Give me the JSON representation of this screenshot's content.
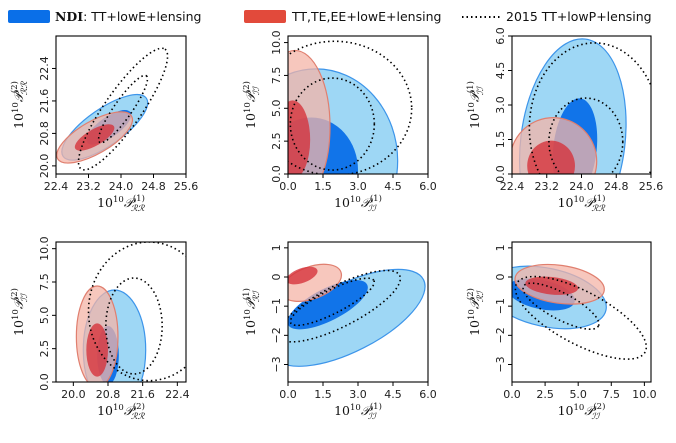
{
  "legend": [
    {
      "bold": "NDI",
      "label": ": TT+lowE+lensing",
      "color": "#0a6fe8",
      "style": "filled"
    },
    {
      "bold": "",
      "label": "TT,TE,EE+lowE+lensing",
      "color": "#e24a3b",
      "style": "filled"
    },
    {
      "bold": "",
      "label": "2015 TT+lowP+lensing",
      "color": "#000000",
      "style": "dotted"
    }
  ],
  "colors": {
    "blue_inner": "#0a6fe8",
    "blue_outer": "#8dd0f3",
    "blue_edge": "#3d95ea",
    "red_inner": "#d6333c",
    "red_outer": "#f4b4a7",
    "red_edge": "#e07f6f",
    "dotted": "#000000"
  },
  "chart_data": [
    {
      "type": "contour",
      "id": "p1",
      "xlabel_base": "10",
      "xlabel_exp": "10",
      "xlabel_sym": "𝒫",
      "xlabel_sup": "(1)",
      "xlabel_sub": "ℛℛ",
      "ylabel_base": "10",
      "ylabel_exp": "10",
      "ylabel_sym": "𝒫",
      "ylabel_sup": "(2)",
      "ylabel_sub": "ℛℛ",
      "xlim": [
        22.4,
        25.6
      ],
      "ylim": [
        19.8,
        23.2
      ],
      "xticks": [
        22.4,
        23.2,
        24.0,
        24.8,
        25.6
      ],
      "xtick_labels": [
        "22.4",
        "23.2",
        "24.0",
        "24.8",
        "25.6"
      ],
      "yticks": [
        20.0,
        20.8,
        21.6,
        22.4
      ],
      "ytick_labels": [
        "20.0",
        "20.8",
        "21.6",
        "22.4"
      ],
      "contours": [
        {
          "set": "blue",
          "level": "95",
          "cx": 23.6,
          "cy": 20.95,
          "rx": 1.25,
          "ry": 0.45,
          "angle": 35
        },
        {
          "set": "blue",
          "level": "68",
          "cx": 23.7,
          "cy": 20.95,
          "rx": 0.65,
          "ry": 0.25,
          "angle": 35
        },
        {
          "set": "red",
          "level": "95",
          "cx": 23.35,
          "cy": 20.7,
          "rx": 1.05,
          "ry": 0.4,
          "angle": 30
        },
        {
          "set": "red",
          "level": "68",
          "cx": 23.35,
          "cy": 20.7,
          "rx": 0.55,
          "ry": 0.2,
          "angle": 30
        },
        {
          "set": "dotted",
          "level": "95",
          "cx": 24.05,
          "cy": 21.4,
          "rx": 1.8,
          "ry": 0.45,
          "angle": 55
        },
        {
          "set": "dotted",
          "level": "68",
          "cx": 24.05,
          "cy": 21.4,
          "rx": 1.0,
          "ry": 0.22,
          "angle": 55
        }
      ]
    },
    {
      "type": "contour",
      "id": "p2",
      "xlabel_base": "10",
      "xlabel_exp": "10",
      "xlabel_sym": "𝒫",
      "xlabel_sup": "(1)",
      "xlabel_sub": "ℐℐ",
      "ylabel_base": "10",
      "ylabel_exp": "10",
      "ylabel_sym": "𝒫",
      "ylabel_sup": "(2)",
      "ylabel_sub": "ℐℐ",
      "xlim": [
        0,
        6.0
      ],
      "ylim": [
        0,
        10.5
      ],
      "xticks": [
        0,
        1.5,
        3.0,
        4.5,
        6.0
      ],
      "xtick_labels": [
        "0.0",
        "1.5",
        "3.0",
        "4.5",
        "6.0"
      ],
      "yticks": [
        0,
        2.5,
        5.0,
        7.5,
        10.0
      ],
      "ytick_labels": [
        "0.0",
        "2.5",
        "5.0",
        "7.5",
        "10.0"
      ],
      "contours": [
        {
          "set": "blue",
          "level": "95",
          "cx": 1.2,
          "cy": 1.0,
          "rx": 3.5,
          "ry": 7.0,
          "angle": 0
        },
        {
          "set": "blue",
          "level": "68",
          "cx": 1.0,
          "cy": 0.3,
          "rx": 2.0,
          "ry": 4.0,
          "angle": 0
        },
        {
          "set": "red",
          "level": "95",
          "cx": 0.3,
          "cy": 3.6,
          "rx": 1.5,
          "ry": 5.8,
          "angle": 0
        },
        {
          "set": "red",
          "level": "68",
          "cx": 0.2,
          "cy": 2.6,
          "rx": 0.75,
          "ry": 3.0,
          "angle": 0
        },
        {
          "set": "dotted",
          "level": "95",
          "cx": 2.0,
          "cy": 5.0,
          "rx": 3.3,
          "ry": 5.1,
          "angle": 0
        },
        {
          "set": "dotted",
          "level": "68",
          "cx": 1.9,
          "cy": 3.8,
          "rx": 1.8,
          "ry": 3.5,
          "angle": 0
        }
      ]
    },
    {
      "type": "contour",
      "id": "p3",
      "xlabel_base": "10",
      "xlabel_exp": "10",
      "xlabel_sym": "𝒫",
      "xlabel_sup": "(1)",
      "xlabel_sub": "ℛℛ",
      "ylabel_base": "10",
      "ylabel_exp": "10",
      "ylabel_sym": "𝒫",
      "ylabel_sup": "(1)",
      "ylabel_sub": "ℐℐ",
      "xlim": [
        22.4,
        25.6
      ],
      "ylim": [
        0,
        6.0
      ],
      "xticks": [
        22.4,
        23.2,
        24.0,
        24.8,
        25.6
      ],
      "xtick_labels": [
        "22.4",
        "23.2",
        "24.0",
        "24.8",
        "25.6"
      ],
      "yticks": [
        0,
        1.5,
        3.0,
        4.5,
        6.0
      ],
      "ytick_labels": [
        "0.0",
        "1.5",
        "3.0",
        "4.5",
        "6.0"
      ],
      "contours": [
        {
          "set": "blue",
          "level": "95",
          "cx": 23.8,
          "cy": 1.4,
          "rx": 1.2,
          "ry": 4.5,
          "angle": -7
        },
        {
          "set": "blue",
          "level": "68",
          "cx": 23.85,
          "cy": 1.1,
          "rx": 0.5,
          "ry": 2.2,
          "angle": -6
        },
        {
          "set": "red",
          "level": "95",
          "cx": 23.35,
          "cy": 0.55,
          "rx": 1.0,
          "ry": 1.9,
          "angle": 0
        },
        {
          "set": "red",
          "level": "68",
          "cx": 23.3,
          "cy": 0.35,
          "rx": 0.55,
          "ry": 1.1,
          "angle": 0
        },
        {
          "set": "dotted",
          "level": "95",
          "cx": 24.3,
          "cy": 2.0,
          "rx": 1.5,
          "ry": 3.7,
          "angle": 0
        },
        {
          "set": "dotted",
          "level": "68",
          "cx": 24.1,
          "cy": 1.4,
          "rx": 0.85,
          "ry": 1.9,
          "angle": 0
        }
      ]
    },
    {
      "type": "contour",
      "id": "p4",
      "xlabel_base": "10",
      "xlabel_exp": "10",
      "xlabel_sym": "𝒫",
      "xlabel_sup": "(2)",
      "xlabel_sub": "ℛℛ",
      "ylabel_base": "10",
      "ylabel_exp": "10",
      "ylabel_sym": "𝒫",
      "ylabel_sup": "(2)",
      "ylabel_sub": "ℐℐ",
      "xlim": [
        19.6,
        22.6
      ],
      "ylim": [
        0,
        10.5
      ],
      "xticks": [
        20.0,
        20.8,
        21.6,
        22.4
      ],
      "xtick_labels": [
        "20.0",
        "20.8",
        "21.6",
        "22.4"
      ],
      "yticks": [
        0,
        2.5,
        5.0,
        7.5,
        10.0
      ],
      "ytick_labels": [
        "0.0",
        "2.5",
        "5.0",
        "7.5",
        "10.0"
      ],
      "contours": [
        {
          "set": "blue",
          "level": "95",
          "cx": 20.95,
          "cy": 2.4,
          "rx": 0.72,
          "ry": 4.5,
          "angle": 0
        },
        {
          "set": "blue",
          "level": "68",
          "cx": 20.8,
          "cy": 2.0,
          "rx": 0.25,
          "ry": 2.2,
          "angle": 0
        },
        {
          "set": "red",
          "level": "95",
          "cx": 20.55,
          "cy": 3.4,
          "rx": 0.48,
          "ry": 3.8,
          "angle": 0
        },
        {
          "set": "red",
          "level": "68",
          "cx": 20.55,
          "cy": 2.4,
          "rx": 0.25,
          "ry": 2.0,
          "angle": 0
        },
        {
          "set": "dotted",
          "level": "95",
          "cx": 21.75,
          "cy": 5.3,
          "rx": 1.4,
          "ry": 5.2,
          "angle": 0
        },
        {
          "set": "dotted",
          "level": "68",
          "cx": 21.4,
          "cy": 4.2,
          "rx": 0.65,
          "ry": 3.6,
          "angle": 0
        }
      ]
    },
    {
      "type": "contour",
      "id": "p5",
      "xlabel_base": "10",
      "xlabel_exp": "10",
      "xlabel_sym": "𝒫",
      "xlabel_sup": "(1)",
      "xlabel_sub": "ℐℐ",
      "ylabel_base": "10",
      "ylabel_exp": "10",
      "ylabel_sym": "𝒫",
      "ylabel_sup": "(1)",
      "ylabel_sub": "ℛℐ",
      "xlim": [
        0,
        6.0
      ],
      "ylim": [
        -3.6,
        1.2
      ],
      "xticks": [
        0,
        1.5,
        3.0,
        4.5,
        6.0
      ],
      "xtick_labels": [
        "0.0",
        "1.5",
        "3.0",
        "4.5",
        "6.0"
      ],
      "yticks": [
        -3,
        -2,
        -1,
        0,
        1
      ],
      "ytick_labels": [
        "−3",
        "−2",
        "−1",
        "0",
        "1"
      ],
      "contours": [
        {
          "set": "blue",
          "level": "95",
          "cx": 2.6,
          "cy": -1.4,
          "rx": 3.6,
          "ry": 1.15,
          "angle": 27
        },
        {
          "set": "blue",
          "level": "68",
          "cx": 1.7,
          "cy": -0.95,
          "rx": 1.9,
          "ry": 0.55,
          "angle": 27
        },
        {
          "set": "red",
          "level": "95",
          "cx": 1.0,
          "cy": -0.2,
          "rx": 1.35,
          "ry": 0.55,
          "angle": 20
        },
        {
          "set": "red",
          "level": "68",
          "cx": 0.6,
          "cy": 0.05,
          "rx": 0.7,
          "ry": 0.25,
          "angle": 20
        },
        {
          "set": "dotted",
          "level": "95",
          "cx": 2.2,
          "cy": -1.0,
          "rx": 2.9,
          "ry": 0.7,
          "angle": 27
        },
        {
          "set": "dotted",
          "level": "68",
          "cx": 1.9,
          "cy": -0.85,
          "rx": 2.0,
          "ry": 0.4,
          "angle": 27
        }
      ]
    },
    {
      "type": "contour",
      "id": "p6",
      "xlabel_base": "10",
      "xlabel_exp": "10",
      "xlabel_sym": "𝒫",
      "xlabel_sup": "(2)",
      "xlabel_sub": "ℐℐ",
      "ylabel_base": "10",
      "ylabel_exp": "10",
      "ylabel_sym": "𝒫",
      "ylabel_sup": "(2)",
      "ylabel_sub": "ℛℐ",
      "xlim": [
        0,
        10.5
      ],
      "ylim": [
        -3.6,
        1.2
      ],
      "xticks": [
        0,
        2.5,
        5.0,
        7.5,
        10.0
      ],
      "xtick_labels": [
        "0.0",
        "2.5",
        "5.0",
        "7.5",
        "10.0"
      ],
      "yticks": [
        -3,
        -2,
        -1,
        0,
        1
      ],
      "ytick_labels": [
        "−3",
        "−2",
        "−1",
        "0",
        "1"
      ],
      "contours": [
        {
          "set": "blue",
          "level": "95",
          "cx": 2.6,
          "cy": -0.7,
          "rx": 4.6,
          "ry": 1.0,
          "angle": -12
        },
        {
          "set": "blue",
          "level": "68",
          "cx": 2.2,
          "cy": -0.6,
          "rx": 2.6,
          "ry": 0.5,
          "angle": -12
        },
        {
          "set": "red",
          "level": "95",
          "cx": 3.6,
          "cy": -0.25,
          "rx": 3.4,
          "ry": 0.65,
          "angle": -8
        },
        {
          "set": "red",
          "level": "68",
          "cx": 3.0,
          "cy": -0.3,
          "rx": 2.0,
          "ry": 0.3,
          "angle": -6
        },
        {
          "set": "dotted",
          "level": "95",
          "cx": 5.2,
          "cy": -1.4,
          "rx": 5.5,
          "ry": 0.9,
          "angle": -28
        },
        {
          "set": "dotted",
          "level": "68",
          "cx": 3.7,
          "cy": -1.0,
          "rx": 3.2,
          "ry": 0.45,
          "angle": -28
        }
      ]
    }
  ]
}
